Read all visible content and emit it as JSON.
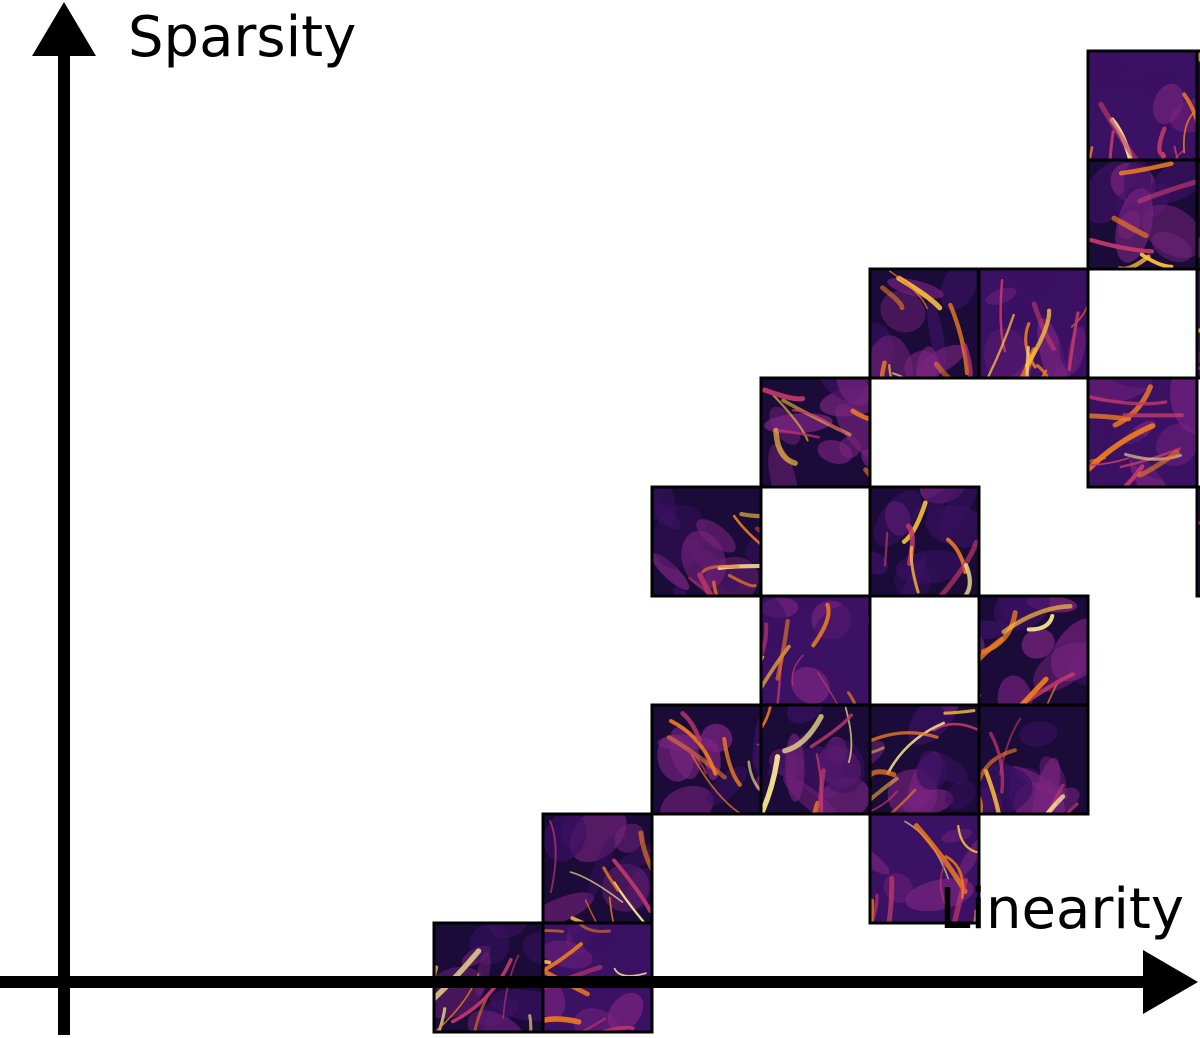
{
  "axes": {
    "x_label": "Linearity",
    "y_label": "Sparsity"
  },
  "colormap": {
    "name": "inferno",
    "dark": "#1a0b38",
    "mid_dark": "#3b1163",
    "mid": "#7a2480",
    "warm": "#c1396a",
    "hot": "#f07e1f",
    "bright": "#fcc23a",
    "brightest": "#fbe88f"
  },
  "tiles": [
    {
      "col": 9,
      "row": 0,
      "brightness": 0.55
    },
    {
      "col": 10,
      "row": 0,
      "brightness": 0.45
    },
    {
      "col": 11,
      "row": 0,
      "brightness": 0.3
    },
    {
      "col": 9,
      "row": 1,
      "brightness": 0.2
    },
    {
      "col": 10,
      "row": 1,
      "brightness": 0.5
    },
    {
      "col": 11,
      "row": 1,
      "brightness": 0.6
    },
    {
      "col": 7,
      "row": 2,
      "brightness": 0.5
    },
    {
      "col": 8,
      "row": 2,
      "brightness": 0.65
    },
    {
      "col": 10,
      "row": 2,
      "brightness": 0.55
    },
    {
      "col": 6,
      "row": 3,
      "brightness": 0.35
    },
    {
      "col": 9,
      "row": 3,
      "brightness": 0.7
    },
    {
      "col": 5,
      "row": 4,
      "brightness": 0.45
    },
    {
      "col": 7,
      "row": 4,
      "brightness": 0.3
    },
    {
      "col": 10,
      "row": 4,
      "brightness": 0.5
    },
    {
      "col": 6,
      "row": 5,
      "brightness": 0.6
    },
    {
      "col": 8,
      "row": 5,
      "brightness": 0.4
    },
    {
      "col": 5,
      "row": 6,
      "brightness": 0.4
    },
    {
      "col": 6,
      "row": 6,
      "brightness": 0.4
    },
    {
      "col": 7,
      "row": 6,
      "brightness": 0.45
    },
    {
      "col": 8,
      "row": 6,
      "brightness": 0.5
    },
    {
      "col": 4,
      "row": 7,
      "brightness": 0.45
    },
    {
      "col": 7,
      "row": 7,
      "brightness": 0.55
    },
    {
      "col": 3,
      "row": 8,
      "brightness": 0.35
    },
    {
      "col": 4,
      "row": 8,
      "brightness": 0.6
    }
  ]
}
